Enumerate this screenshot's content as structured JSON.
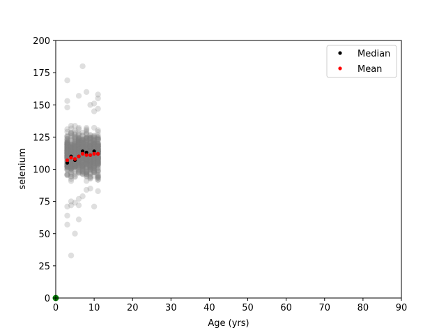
{
  "chart_data": {
    "type": "scatter",
    "xlabel": "Age (yrs)",
    "ylabel": "selenium",
    "xlim": [
      0,
      90
    ],
    "ylim": [
      0,
      200
    ],
    "xticks": [
      0,
      10,
      20,
      30,
      40,
      50,
      60,
      70,
      80,
      90
    ],
    "yticks": [
      0,
      25,
      50,
      75,
      100,
      125,
      150,
      175,
      200
    ],
    "grid": false,
    "legend_position": "top-right",
    "legend": [
      "Median",
      "Mean"
    ],
    "colors": {
      "raw": "#808080",
      "median": "#000000",
      "mean": "#ff0000",
      "origin_marker": "#008000"
    },
    "raw_points": {
      "name": "",
      "x_values": [
        3,
        4,
        5,
        6,
        7,
        8,
        9,
        10,
        11
      ],
      "typical_range": [
        83,
        140
      ],
      "outliers": [
        {
          "x": 3,
          "y": 169
        },
        {
          "x": 3,
          "y": 153
        },
        {
          "x": 3,
          "y": 148
        },
        {
          "x": 3,
          "y": 71
        },
        {
          "x": 3,
          "y": 64
        },
        {
          "x": 3,
          "y": 57
        },
        {
          "x": 4,
          "y": 33
        },
        {
          "x": 4,
          "y": 75
        },
        {
          "x": 4,
          "y": 72
        },
        {
          "x": 5,
          "y": 50
        },
        {
          "x": 5,
          "y": 74
        },
        {
          "x": 6,
          "y": 157
        },
        {
          "x": 6,
          "y": 61
        },
        {
          "x": 6,
          "y": 72
        },
        {
          "x": 6,
          "y": 77
        },
        {
          "x": 7,
          "y": 180
        },
        {
          "x": 7,
          "y": 79
        },
        {
          "x": 8,
          "y": 160
        },
        {
          "x": 8,
          "y": 84
        },
        {
          "x": 9,
          "y": 150
        },
        {
          "x": 9,
          "y": 85
        },
        {
          "x": 10,
          "y": 151
        },
        {
          "x": 10,
          "y": 145
        },
        {
          "x": 10,
          "y": 71
        },
        {
          "x": 11,
          "y": 158
        },
        {
          "x": 11,
          "y": 155
        },
        {
          "x": 11,
          "y": 147
        },
        {
          "x": 11,
          "y": 83
        }
      ]
    },
    "series": [
      {
        "name": "Median",
        "x": [
          3,
          4,
          5,
          6,
          7,
          8,
          9,
          10,
          11
        ],
        "values": [
          105,
          110,
          107,
          110,
          114,
          113,
          111,
          114,
          112
        ]
      },
      {
        "name": "Mean",
        "x": [
          3,
          4,
          5,
          6,
          7,
          8,
          9,
          10,
          11
        ],
        "values": [
          107,
          109,
          108,
          110,
          112,
          111,
          111,
          112,
          112
        ]
      }
    ],
    "extra_point": {
      "x": 0,
      "y": 0
    }
  }
}
